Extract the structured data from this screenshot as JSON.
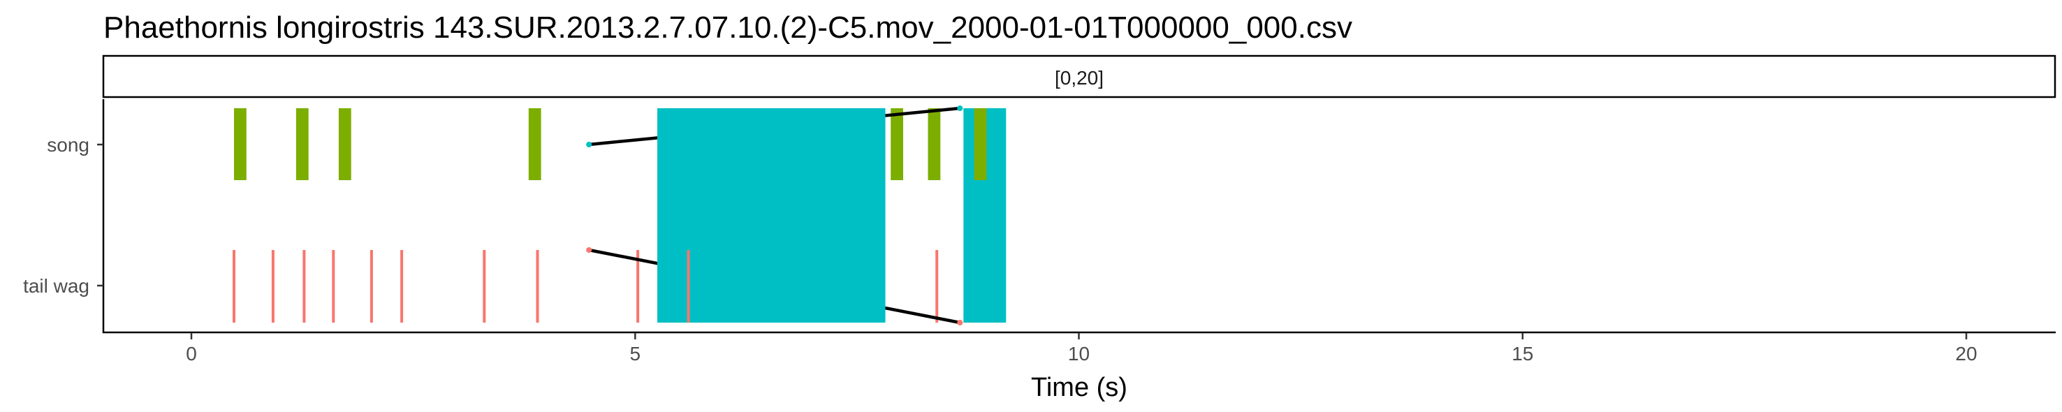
{
  "chart_data": {
    "type": "timeline",
    "title": "Phaethornis longirostris   143.SUR.2013.2.7.07.10.(2)-C5.mov_2000-01-01T000000_000.csv",
    "facet_label": "[0,20]",
    "xlabel": "Time (s)",
    "ylabel": "",
    "xlim": [
      -1,
      21
    ],
    "x_ticks": [
      0,
      5,
      10,
      15,
      20
    ],
    "y_categories": [
      "song",
      "tail wag"
    ],
    "grid": false,
    "colors": {
      "song_bar": "#7CAE00",
      "tail_wag_tick": "#F8766D",
      "highlight_box": "#00BFC4",
      "connector_line": "#000000"
    },
    "song_events": [
      {
        "start": 0.48,
        "end": 0.62
      },
      {
        "start": 1.18,
        "end": 1.32
      },
      {
        "start": 1.66,
        "end": 1.8
      },
      {
        "start": 3.8,
        "end": 3.94
      },
      {
        "start": 7.88,
        "end": 8.02
      },
      {
        "start": 8.3,
        "end": 8.44
      },
      {
        "start": 8.82,
        "end": 8.96
      }
    ],
    "tail_wag_events": [
      0.48,
      0.92,
      1.27,
      1.6,
      2.03,
      2.37,
      3.3,
      3.9,
      5.03,
      5.6,
      8.4
    ],
    "highlight_boxes": [
      {
        "start": 5.25,
        "end": 7.82
      },
      {
        "start": 8.7,
        "end": 9.18
      }
    ],
    "connector_lines": [
      {
        "x": [
          4.48,
          8.66
        ],
        "y": [
          "song",
          "song_top"
        ]
      },
      {
        "x": [
          4.48,
          8.66
        ],
        "y": [
          "tail wag_top",
          "tail wag_bottom"
        ]
      }
    ]
  }
}
